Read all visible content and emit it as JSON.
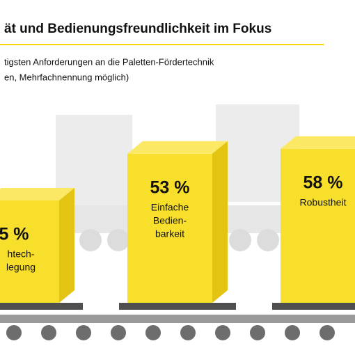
{
  "chart_data": {
    "type": "bar",
    "title": "ät und Bedienungsfreundlichkeit im Fokus",
    "subtitle": [
      "tigsten Anforderungen an die Paletten-Fördertechnik",
      "en, Mehrfachnennung möglich)"
    ],
    "categories": [
      [
        "htech-",
        "legung"
      ],
      [
        "Einfache",
        "Bedien-",
        "barkeit"
      ],
      [
        "Robustheit"
      ]
    ],
    "values": [
      5,
      53,
      58
    ],
    "value_labels": [
      "5 %",
      "53 %",
      "58 %"
    ],
    "color": "#f7df2b"
  }
}
